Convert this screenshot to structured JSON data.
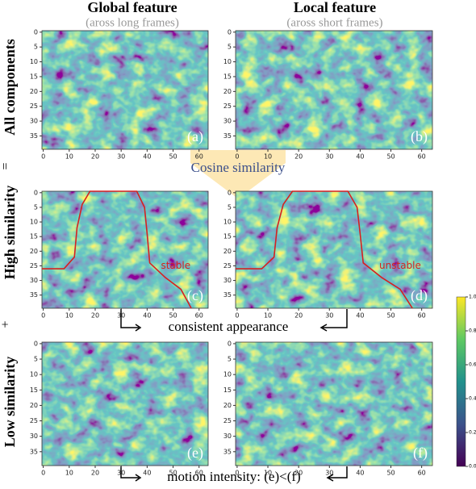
{
  "columns": [
    {
      "title": "Global feature",
      "subtitle": "(aross long frames)"
    },
    {
      "title": "Local feature",
      "subtitle": "(aross short frames)"
    }
  ],
  "rows": [
    {
      "label": "All components"
    },
    {
      "label": "High similarity"
    },
    {
      "label": "Low similarity"
    }
  ],
  "operators": [
    "=",
    "+"
  ],
  "panels": [
    {
      "label": "(a)"
    },
    {
      "label": "(b)"
    },
    {
      "label": "(c)"
    },
    {
      "label": "(d)"
    },
    {
      "label": "(e)"
    },
    {
      "label": "(f)"
    }
  ],
  "xticks": [
    0,
    10,
    20,
    30,
    40,
    50,
    60
  ],
  "yticks": [
    0,
    5,
    10,
    15,
    20,
    25,
    30,
    35
  ],
  "cosine_label": "Cosine similarity",
  "annotations": {
    "stable": "stable",
    "unstable": "unstable",
    "consistent": "consistent appearance",
    "motion": "motion intensity: (e)<(f)"
  },
  "colorbar": {
    "ticks": [
      {
        "value": 0,
        "label": "0.0"
      },
      {
        "value": 0.2,
        "label": "0.2"
      },
      {
        "value": 0.4,
        "label": "0.4"
      },
      {
        "value": 0.6,
        "label": "0.6"
      },
      {
        "value": 0.8,
        "label": "0.8"
      },
      {
        "value": 1,
        "label": "1.0"
      }
    ]
  }
}
